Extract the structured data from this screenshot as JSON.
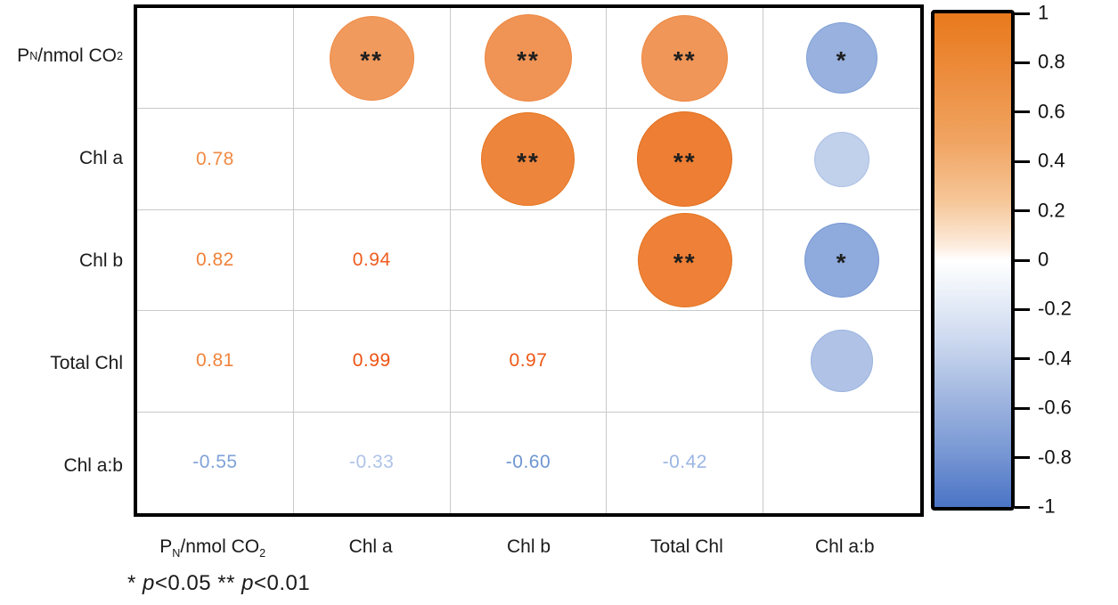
{
  "chart_data": {
    "type": "correlation-matrix",
    "title": "",
    "variables": [
      "Pₙ/nmol CO₂",
      "Chl a",
      "Chl b",
      "Total Chl",
      "Chl a:b"
    ],
    "layout": {
      "upper_triangle": "circles sized and colored by correlation with significance stars",
      "lower_triangle": "numeric correlation values colored by sign and magnitude",
      "diagonal": "empty",
      "grid": "on",
      "legend_position": "right colorbar"
    },
    "upper_triangle": [
      {
        "row": 0,
        "col": 1,
        "row_var": "Pₙ/nmol CO₂",
        "col_var": "Chl a",
        "r": 0.78,
        "sig": "**",
        "fill": "#F19A5E",
        "edge": "#EF8A46"
      },
      {
        "row": 0,
        "col": 2,
        "row_var": "Pₙ/nmol CO₂",
        "col_var": "Chl b",
        "r": 0.82,
        "sig": "**",
        "fill": "#F09456",
        "edge": "#EE853D"
      },
      {
        "row": 0,
        "col": 3,
        "row_var": "Pₙ/nmol CO₂",
        "col_var": "Total Chl",
        "r": 0.81,
        "sig": "**",
        "fill": "#F09658",
        "edge": "#EE873F"
      },
      {
        "row": 0,
        "col": 4,
        "row_var": "Pₙ/nmol CO₂",
        "col_var": "Chl a:b",
        "r": -0.55,
        "sig": "*",
        "fill": "#98B1DE",
        "edge": "#82A0D7"
      },
      {
        "row": 1,
        "col": 2,
        "row_var": "Chl a",
        "col_var": "Chl b",
        "r": 0.94,
        "sig": "**",
        "fill": "#EE853D",
        "edge": "#E5761F"
      },
      {
        "row": 1,
        "col": 3,
        "row_var": "Chl a",
        "col_var": "Total Chl",
        "r": 0.99,
        "sig": "**",
        "fill": "#ED7E33",
        "edge": "#E06F20"
      },
      {
        "row": 1,
        "col": 4,
        "row_var": "Chl a",
        "col_var": "Chl a:b",
        "r": -0.33,
        "sig": "",
        "fill": "#C1D0EB",
        "edge": "#ABC0E4"
      },
      {
        "row": 2,
        "col": 3,
        "row_var": "Chl b",
        "col_var": "Total Chl",
        "r": 0.97,
        "sig": "**",
        "fill": "#EE8137",
        "edge": "#E2731F"
      },
      {
        "row": 2,
        "col": 4,
        "row_var": "Chl b",
        "col_var": "Chl a:b",
        "r": -0.6,
        "sig": "*",
        "fill": "#8FAADC",
        "edge": "#7899D4"
      },
      {
        "row": 3,
        "col": 4,
        "row_var": "Total Chl",
        "col_var": "Chl a:b",
        "r": -0.42,
        "sig": "",
        "fill": "#B0C3E6",
        "edge": "#9AB3DF"
      }
    ],
    "lower_triangle": [
      {
        "row": 1,
        "col": 0,
        "row_var": "Chl a",
        "col_var": "Pₙ/nmol CO₂",
        "label": "0.78",
        "color": "#F18A44"
      },
      {
        "row": 2,
        "col": 0,
        "row_var": "Chl b",
        "col_var": "Pₙ/nmol CO₂",
        "label": "0.82",
        "color": "#F08139"
      },
      {
        "row": 2,
        "col": 1,
        "row_var": "Chl b",
        "col_var": "Chl a",
        "label": "0.94",
        "color": "#EF5C1C"
      },
      {
        "row": 3,
        "col": 0,
        "row_var": "Total Chl",
        "col_var": "Pₙ/nmol CO₂",
        "label": "0.81",
        "color": "#F0843D"
      },
      {
        "row": 3,
        "col": 1,
        "row_var": "Total Chl",
        "col_var": "Chl a",
        "label": "0.99",
        "color": "#EE5213"
      },
      {
        "row": 3,
        "col": 2,
        "row_var": "Total Chl",
        "col_var": "Chl b",
        "label": "0.97",
        "color": "#EE5717"
      },
      {
        "row": 4,
        "col": 0,
        "row_var": "Chl a:b",
        "col_var": "Pₙ/nmol CO₂",
        "label": "-0.55",
        "color": "#7FA2D8"
      },
      {
        "row": 4,
        "col": 1,
        "row_var": "Chl a:b",
        "col_var": "Chl a",
        "label": "-0.33",
        "color": "#AEC3E9"
      },
      {
        "row": 4,
        "col": 2,
        "row_var": "Chl a:b",
        "col_var": "Chl b",
        "label": "-0.60",
        "color": "#6E96D2"
      },
      {
        "row": 4,
        "col": 3,
        "row_var": "Chl a:b",
        "col_var": "Total Chl",
        "label": "-0.42",
        "color": "#9BB5E3"
      }
    ],
    "colorbar": {
      "min": -1,
      "max": 1,
      "tick_labels": [
        "1",
        "0.8",
        "0.6",
        "0.4",
        "0.2",
        "0",
        "-0.2",
        "-0.4",
        "-0.6",
        "-0.8",
        "-1"
      ],
      "positive_color": "#ED7D31",
      "zero_color": "#FFFFFF",
      "negative_color": "#4472C4"
    },
    "footnote": {
      "text": "* p<0.05  ** p<0.01",
      "segments": [
        {
          "text": "* ",
          "italic": false
        },
        {
          "text": "p",
          "italic": true
        },
        {
          "text": "<0.05",
          "italic": false
        },
        {
          "text": "  ** ",
          "italic": false
        },
        {
          "text": "p",
          "italic": true
        },
        {
          "text": "<0.01",
          "italic": false
        }
      ]
    }
  },
  "style_colors": {
    "matrix_border": "#000000",
    "gridline": "#C9C9C9",
    "star": "#1F1F1F",
    "background": "#FFFFFF"
  }
}
